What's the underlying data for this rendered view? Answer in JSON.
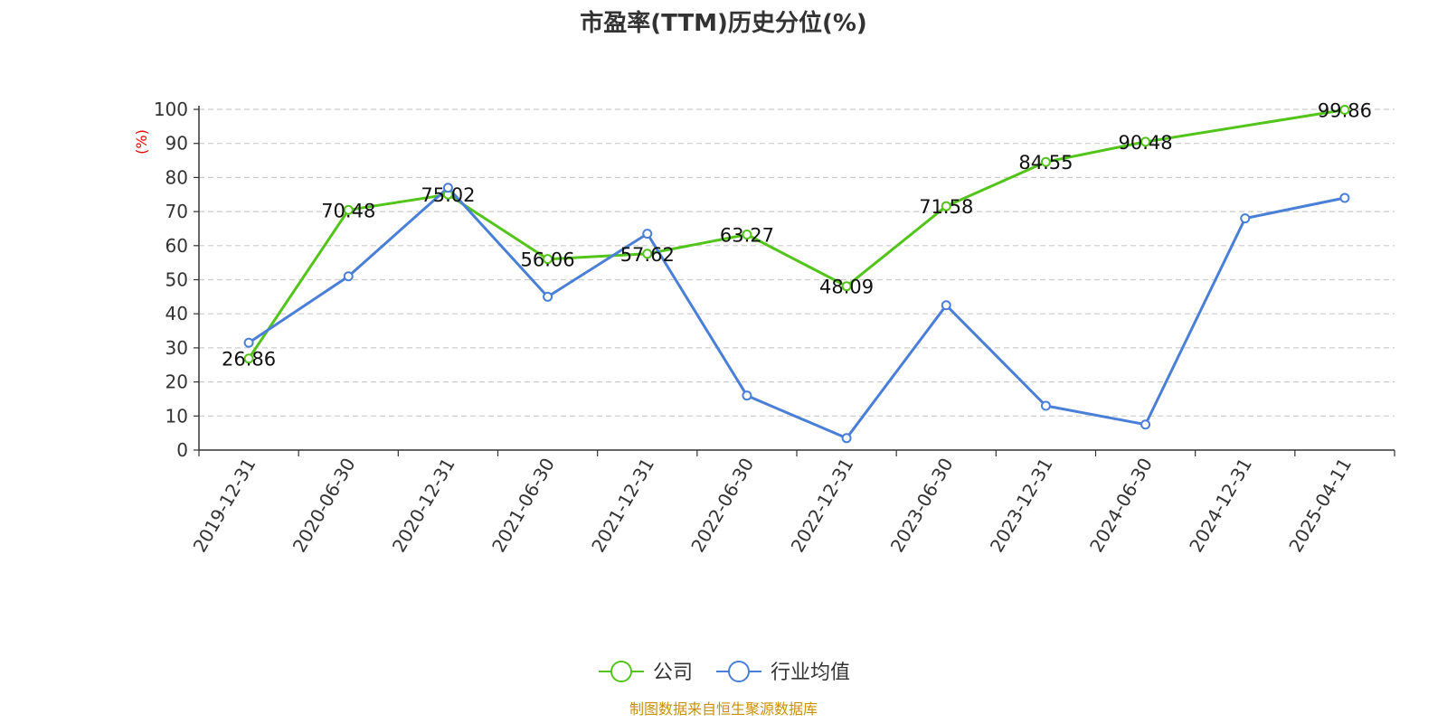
{
  "colors": {
    "company": "#52c41a",
    "industry": "#4a7fd8",
    "ylabel": "#ee0000",
    "source": "#c8900a"
  },
  "chart_data": {
    "type": "line",
    "title": "市盈率(TTM)历史分位(%)",
    "ylabel": "(%)",
    "ylim": [
      0,
      100
    ],
    "yticks": [
      0,
      10,
      20,
      30,
      40,
      50,
      60,
      70,
      80,
      90,
      100
    ],
    "grid": "horizontal-dashed",
    "legend_position": "bottom-center",
    "categories": [
      "2019-12-31",
      "2020-06-30",
      "2020-12-31",
      "2021-06-30",
      "2021-12-31",
      "2022-06-30",
      "2022-12-31",
      "2023-06-30",
      "2023-12-31",
      "2024-06-30",
      "2024-12-31",
      "2025-04-11"
    ],
    "series": [
      {
        "name": "公司",
        "color": "#52c41a",
        "values": [
          26.86,
          70.48,
          75.02,
          56.06,
          57.62,
          63.27,
          48.09,
          71.58,
          84.55,
          90.48,
          null,
          99.86
        ],
        "labels": [
          "26.86",
          "70.48",
          "75.02",
          "56.06",
          "57.62",
          "63.27",
          "48.09",
          "71.58",
          "84.55",
          "90.48",
          "",
          "99.86"
        ]
      },
      {
        "name": "行业均值",
        "color": "#4a7fd8",
        "values": [
          31.5,
          51,
          77,
          45,
          63.5,
          16,
          3.5,
          42.5,
          13,
          7.5,
          68,
          74
        ]
      }
    ]
  },
  "source": "制图数据来自恒生聚源数据库"
}
